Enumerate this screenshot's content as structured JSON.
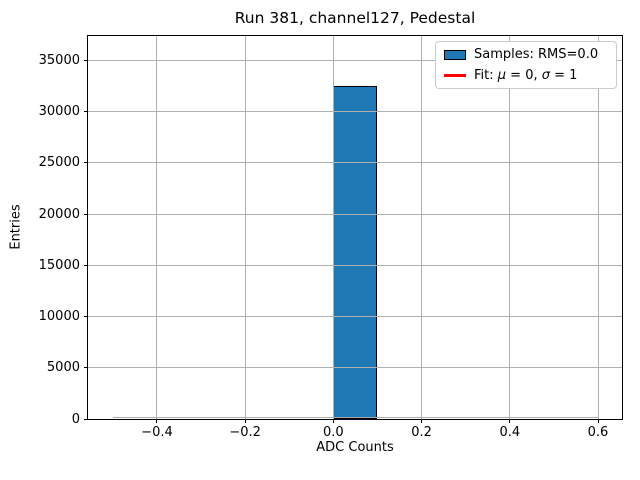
{
  "figure": {
    "title": "Run 381, channel127, Pedestal",
    "xlabel": "ADC Counts",
    "ylabel": "Entries"
  },
  "legend": {
    "samples_label": "Samples: RMS=0.0",
    "fit_label": "Fit: μ = 0, σ = 1",
    "fit_parts": {
      "prefix": "Fit: ",
      "mu": "μ",
      "mid": " = 0, ",
      "sigma": "σ",
      "suffix": " = 1"
    }
  },
  "colors": {
    "bar_fill": "#1f77b4",
    "bar_edge": "#000000",
    "fit_line": "#ff0000",
    "grid": "#b0b0b0",
    "baseline": "#aaaaaa",
    "legend_border": "#cccccc"
  },
  "chart_data": {
    "type": "bar",
    "subtype": "histogram",
    "title": "Run 381, channel127, Pedestal",
    "xlabel": "ADC Counts",
    "ylabel": "Entries",
    "bin_edges": [
      -0.5,
      -0.4,
      -0.3,
      -0.2,
      -0.1,
      0.0,
      0.1,
      0.2,
      0.3,
      0.4,
      0.5,
      0.6
    ],
    "counts": [
      0,
      0,
      0,
      0,
      0,
      32500,
      0,
      0,
      0,
      0,
      0
    ],
    "peak_bin": [
      0.0,
      0.1
    ],
    "peak_value": 32500,
    "xlim": [
      -0.5564,
      0.6544
    ],
    "ylim": [
      0,
      37375
    ],
    "x_ticks": [
      -0.4,
      -0.2,
      0.0,
      0.2,
      0.4,
      0.6
    ],
    "x_tick_labels": [
      "−0.4",
      "−0.2",
      "0.0",
      "0.2",
      "0.4",
      "0.6"
    ],
    "y_ticks": [
      0,
      5000,
      10000,
      15000,
      20000,
      25000,
      30000,
      35000
    ],
    "y_tick_labels": [
      "0",
      "5000",
      "10000",
      "15000",
      "20000",
      "25000",
      "30000",
      "35000"
    ],
    "grid": true,
    "grid_above_data": true,
    "legend_position": "upper right",
    "series": [
      {
        "name": "Samples: RMS=0.0",
        "kind": "hist",
        "color": "#1f77b4"
      },
      {
        "name": "Fit: μ = 0, σ = 1",
        "kind": "line",
        "color": "#ff0000"
      }
    ]
  }
}
